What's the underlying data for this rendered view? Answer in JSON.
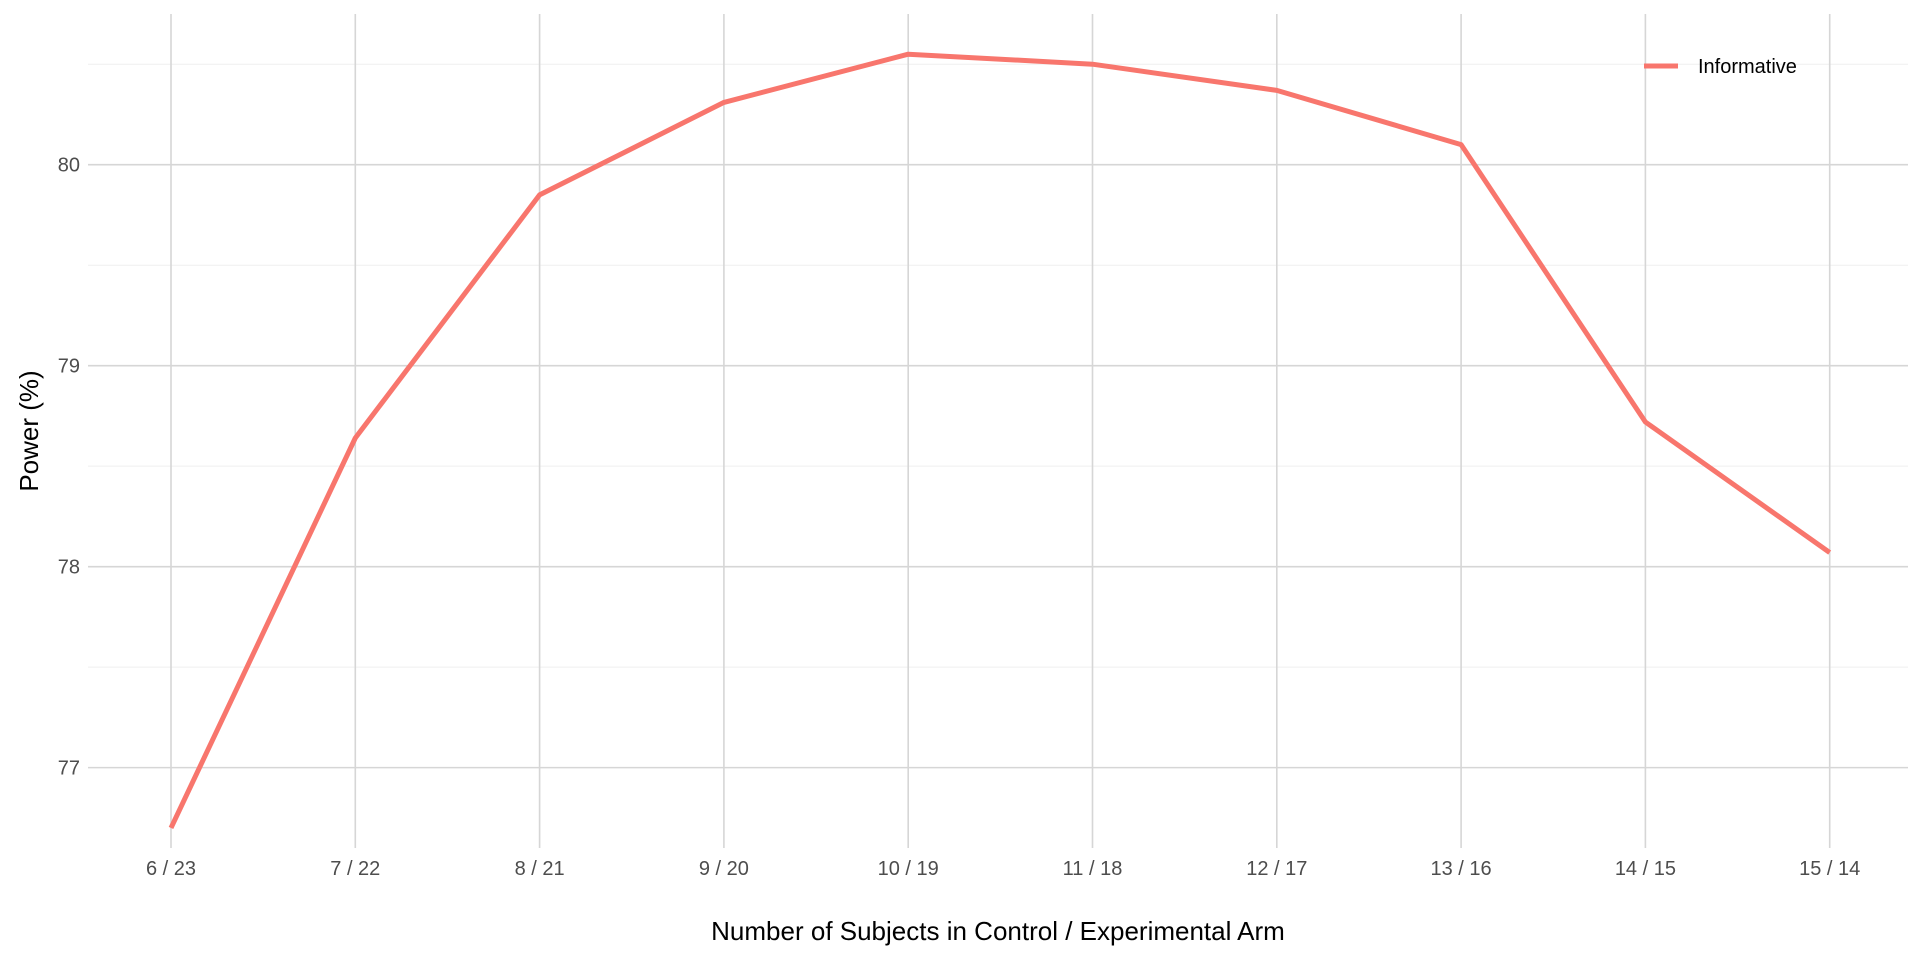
{
  "chart_data": {
    "type": "line",
    "title": "",
    "xlabel": "Number of Subjects in Control / Experimental Arm",
    "ylabel": "Power (%)",
    "categories": [
      "6 / 23",
      "7 / 22",
      "8 / 21",
      "9 / 20",
      "10 / 19",
      "11 / 18",
      "12 / 17",
      "13 / 16",
      "14 / 15",
      "15 / 14"
    ],
    "series": [
      {
        "name": "Informative",
        "color": "#f8766d",
        "values": [
          76.7,
          78.64,
          79.85,
          80.31,
          80.55,
          80.5,
          80.37,
          80.1,
          78.72,
          78.07
        ]
      }
    ],
    "yticks": [
      77,
      78,
      79,
      80
    ],
    "ylim": [
      76.6,
      80.75
    ],
    "grid": true,
    "legend_position": "top-right"
  }
}
